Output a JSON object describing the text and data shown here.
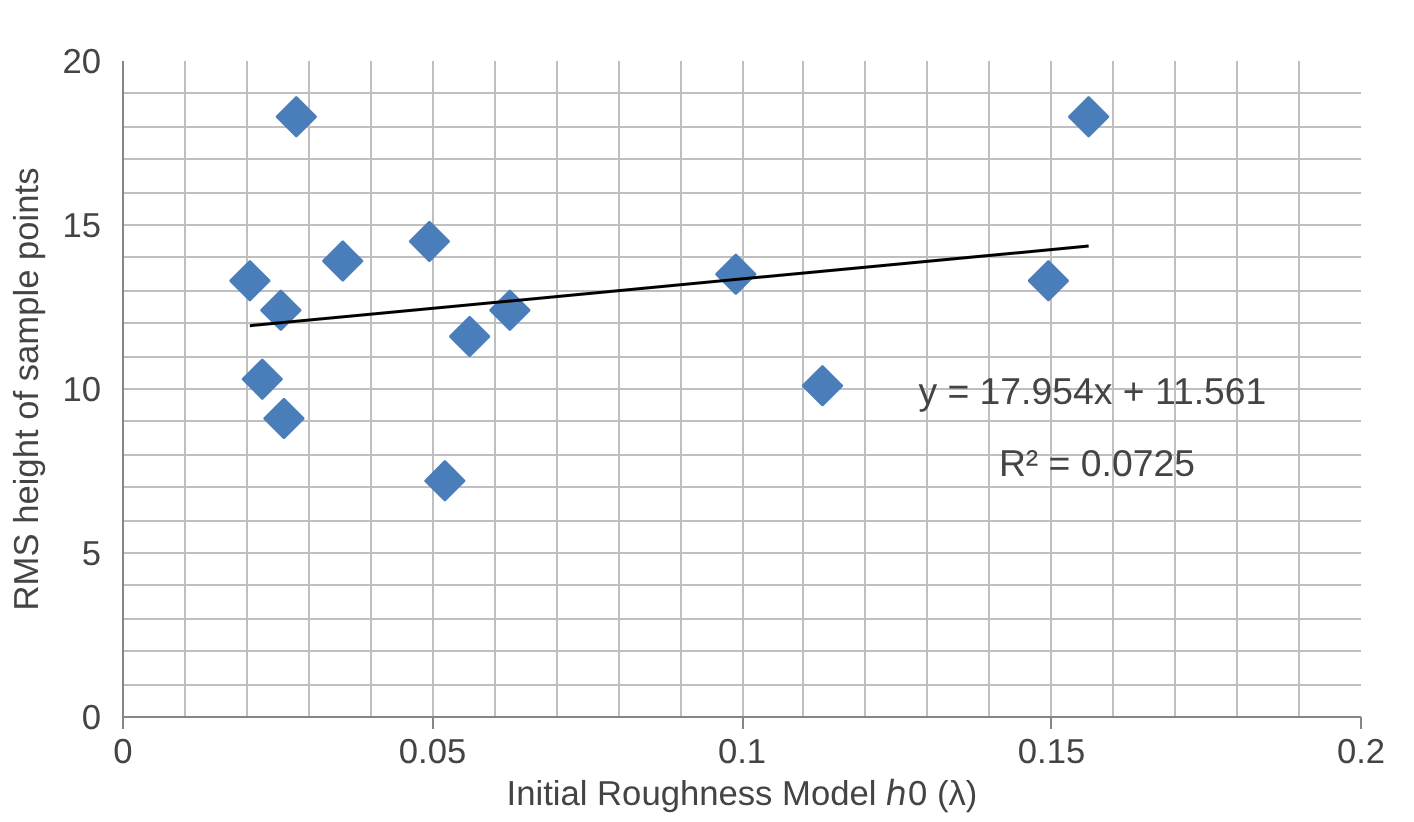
{
  "chart_data": {
    "type": "scatter",
    "xlabel": "Initial Roughness Model ℎ0 (λ)",
    "ylabel": "RMS height of sample points",
    "xlim": [
      0,
      0.2
    ],
    "ylim": [
      0,
      20
    ],
    "xticks": [
      0,
      0.05,
      0.1,
      0.15,
      0.2
    ],
    "yticks": [
      0,
      5,
      10,
      15,
      20
    ],
    "grid": true,
    "series": [
      {
        "color": "#4a7ebb",
        "marker": "diamond",
        "x": [
          0.0205,
          0.0225,
          0.0255,
          0.026,
          0.028,
          0.0355,
          0.0495,
          0.052,
          0.056,
          0.0625,
          0.099,
          0.113,
          0.1495,
          0.156
        ],
        "values": [
          13.3,
          10.3,
          12.4,
          9.1,
          18.3,
          13.9,
          14.5,
          7.2,
          11.6,
          12.4,
          13.5,
          10.1,
          13.3,
          18.3
        ]
      },
      {
        "type": "line",
        "color": "#000000",
        "marker": "none",
        "x": [
          0.0205,
          0.156
        ],
        "values": [
          11.93,
          14.36
        ]
      }
    ],
    "annotations": [
      "y = 17.954x + 11.561",
      "R² = 0.0725"
    ]
  }
}
